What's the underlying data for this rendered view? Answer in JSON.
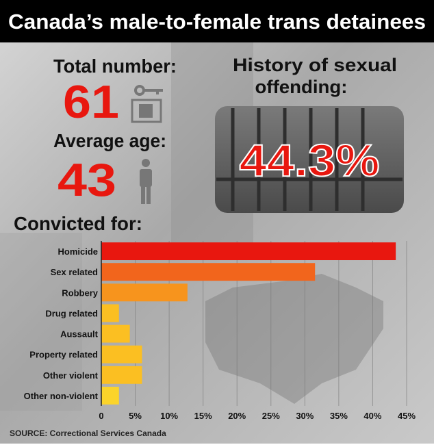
{
  "headline": "Canada’s male-to-female trans detainees",
  "stats": {
    "total_label": "Total number:",
    "total": "61",
    "age_label": "Average age:",
    "age": "43",
    "history_label_1": "History of sexual",
    "history_label_2": "offending:",
    "history": "44.3%"
  },
  "chart_data": {
    "type": "hbar",
    "title": "Convicted for:",
    "categories": [
      "Homicide",
      "Sex related",
      "Robbery",
      "Drug related",
      "Aussault",
      "Property related",
      "Other violent",
      "Other non-violent"
    ],
    "values": [
      43.4,
      31.5,
      12.7,
      2.6,
      4.2,
      6.0,
      6.0,
      2.6
    ],
    "colors": [
      "#e8170f",
      "#f2651c",
      "#f7941d",
      "#fbbf22",
      "#fbbf22",
      "#fbbf22",
      "#fbbf22",
      "#fbd42a"
    ],
    "xlim": [
      0,
      45
    ],
    "xticks": [
      0,
      {
        "value": 5,
        "label": "5%"
      },
      {
        "value": 10,
        "label": "10%"
      },
      {
        "value": 15,
        "label": "15%"
      },
      {
        "value": 20,
        "label": "20%"
      },
      {
        "value": 25,
        "label": "25%"
      },
      {
        "value": 30,
        "label": "30%"
      },
      {
        "value": 35,
        "label": "35%"
      },
      {
        "value": 40,
        "label": "40%"
      },
      {
        "value": 45,
        "label": "45%"
      }
    ],
    "grid": true
  },
  "source": "SOURCE:  Correctional Services Canada"
}
